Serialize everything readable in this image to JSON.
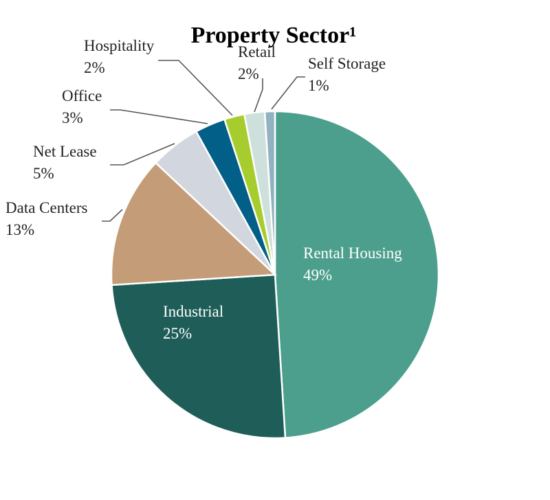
{
  "chart_data": {
    "type": "pie",
    "title": "Property Sector¹",
    "slices": [
      {
        "label": "Rental Housing",
        "value": 49,
        "value_label": "49%",
        "color": "#4d9f8d",
        "label_inside": true
      },
      {
        "label": "Industrial",
        "value": 25,
        "value_label": "25%",
        "color": "#1e5d58",
        "label_inside": true
      },
      {
        "label": "Data Centers",
        "value": 13,
        "value_label": "13%",
        "color": "#c49c78",
        "label_inside": false
      },
      {
        "label": "Net Lease",
        "value": 5,
        "value_label": "5%",
        "color": "#d2d6de",
        "label_inside": false
      },
      {
        "label": "Office",
        "value": 3,
        "value_label": "3%",
        "color": "#015f88",
        "label_inside": false
      },
      {
        "label": "Hospitality",
        "value": 2,
        "value_label": "2%",
        "color": "#a6cd2d",
        "label_inside": false
      },
      {
        "label": "Retail",
        "value": 2,
        "value_label": "2%",
        "color": "#cee0dc",
        "label_inside": false
      },
      {
        "label": "Self Storage",
        "value": 1,
        "value_label": "1%",
        "color": "#92b2c1",
        "label_inside": false
      }
    ],
    "start_angle_deg": 0,
    "direction": "clockwise",
    "legend": "none"
  }
}
